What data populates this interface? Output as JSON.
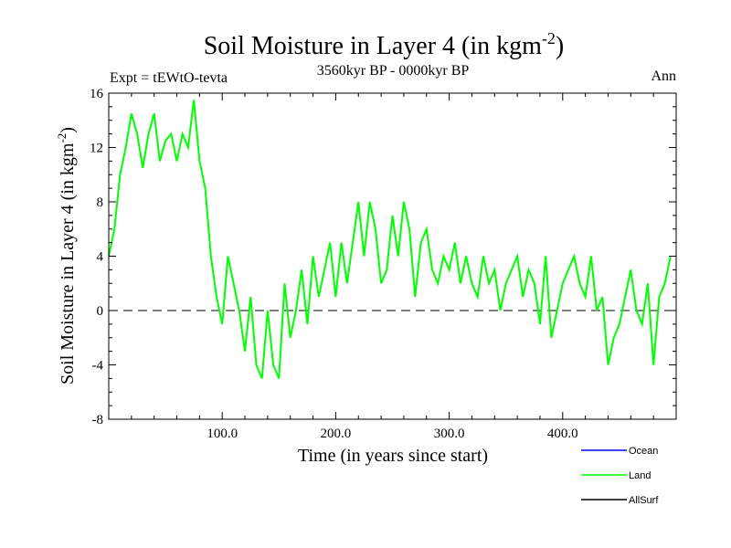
{
  "chart_data": {
    "type": "line",
    "title": "Soil Moisture in Layer 4 (in kgm",
    "title_sup": "-2",
    "title_close": ")",
    "subtitle": "3560kyr BP - 0000kyr BP",
    "top_left_label": "Expt = tEWtO-tevta",
    "top_right_label": "Ann",
    "xlabel": "Time (in years since start)",
    "ylabel": "Soil Moisture in Layer 4 (in kgm",
    "ylabel_sup": "-2",
    "ylabel_close": ")",
    "xlim": [
      0,
      500
    ],
    "ylim": [
      -8,
      16
    ],
    "x_ticks": [
      100,
      200,
      300,
      400
    ],
    "x_tick_labels": [
      "100.0",
      "200.0",
      "300.0",
      "400.0"
    ],
    "y_ticks": [
      -8,
      -4,
      0,
      4,
      8,
      12,
      16
    ],
    "y_tick_labels": [
      "-8",
      "-4",
      "0",
      "4",
      "8",
      "12",
      "16"
    ],
    "zero_line": 0,
    "legend": [
      {
        "name": "Ocean",
        "color": "#0000ff"
      },
      {
        "name": "Land",
        "color": "#00ff00"
      },
      {
        "name": "AllSurf",
        "color": "#000000"
      }
    ],
    "series": [
      {
        "name": "Land",
        "color": "#00ff00",
        "x_start": 0,
        "x_step": 5,
        "values": [
          4,
          6,
          10,
          12,
          14.5,
          13,
          10.5,
          13,
          14.5,
          11,
          12.5,
          13,
          11,
          13,
          12,
          15.5,
          11,
          9,
          4,
          1,
          -1,
          4,
          2,
          0,
          -3,
          1,
          -4,
          -5,
          0,
          -4,
          -5,
          2,
          -2,
          0,
          3,
          -1,
          4,
          1,
          3,
          5,
          1,
          5,
          2,
          5,
          8,
          4,
          8,
          6,
          2,
          3,
          7,
          4,
          8,
          6,
          1,
          5,
          6,
          3,
          2,
          4,
          3,
          5,
          2,
          4,
          2,
          1,
          4,
          2,
          3,
          0,
          2,
          3,
          4,
          1,
          3,
          2,
          -1,
          4,
          -2,
          0,
          2,
          3,
          4,
          2,
          1,
          4,
          0,
          1,
          -4,
          -2,
          -1,
          1,
          3,
          0,
          -1,
          2,
          -4,
          1,
          2,
          4
        ]
      }
    ]
  }
}
